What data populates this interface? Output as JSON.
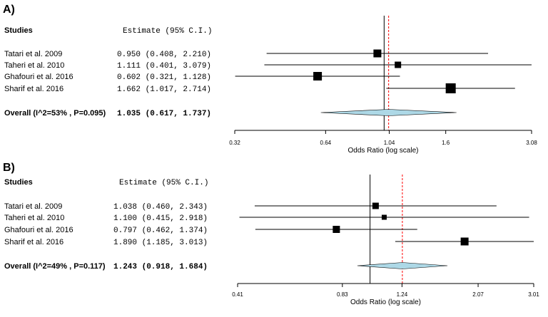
{
  "colors": {
    "square": "#000000",
    "diamond_fill": "#add8e6",
    "ref_line": "#000000",
    "pooled_line": "#ff0000",
    "ci_line": "#000000"
  },
  "chart_data": [
    {
      "type": "forest",
      "panel_label": "A)",
      "col_studies": "Studies",
      "col_estimate": "Estimate  (95% C.I.)",
      "xlabel": "Odds Ratio (log scale)",
      "xscale": "log",
      "xlim": [
        0.32,
        3.08
      ],
      "ticks": [
        "0.32",
        "0.64",
        "1.04",
        "1.6",
        "3.08"
      ],
      "reference_line": 1,
      "pooled_line": 1.035,
      "studies": [
        {
          "label": "Tatari et al. 2009",
          "estimate_text": "0.950 (0.408, 2.210)",
          "or": 0.95,
          "lower": 0.408,
          "upper": 2.21
        },
        {
          "label": "Taheri et al. 2010",
          "estimate_text": "1.111 (0.401, 3.079)",
          "or": 1.111,
          "lower": 0.401,
          "upper": 3.079
        },
        {
          "label": "Ghafouri et al. 2016",
          "estimate_text": "0.602 (0.321, 1.128)",
          "or": 0.602,
          "lower": 0.321,
          "upper": 1.128
        },
        {
          "label": "Sharif et al. 2016",
          "estimate_text": "1.662 (1.017, 2.714)",
          "or": 1.662,
          "lower": 1.017,
          "upper": 2.714
        }
      ],
      "overall": {
        "label": "Overall (I^2=53% , P=0.095)",
        "estimate_text": "1.035  (0.617, 1.737)",
        "or": 1.035,
        "lower": 0.617,
        "upper": 1.737
      }
    },
    {
      "type": "forest",
      "panel_label": "B)",
      "col_studies": "Studies",
      "col_estimate": "Estimate  (95% C.I.)",
      "xlabel": "Odds Ratio (log scale)",
      "xscale": "log",
      "xlim": [
        0.41,
        3.01
      ],
      "ticks": [
        "0.41",
        "0.83",
        "1.24",
        "2.07",
        "3.01"
      ],
      "reference_line": 1,
      "pooled_line": 1.243,
      "studies": [
        {
          "label": "Tatari et al. 2009",
          "estimate_text": "1.038 (0.460, 2.343)",
          "or": 1.038,
          "lower": 0.46,
          "upper": 2.343
        },
        {
          "label": "Taheri et al. 2010",
          "estimate_text": "1.100 (0.415, 2.918)",
          "or": 1.1,
          "lower": 0.415,
          "upper": 2.918
        },
        {
          "label": "Ghafouri et al. 2016",
          "estimate_text": "0.797 (0.462, 1.374)",
          "or": 0.797,
          "lower": 0.462,
          "upper": 1.374
        },
        {
          "label": "Sharif et al. 2016",
          "estimate_text": "1.890 (1.185, 3.013)",
          "or": 1.89,
          "lower": 1.185,
          "upper": 3.013
        }
      ],
      "overall": {
        "label": "Overall (I^2=49% , P=0.117)",
        "estimate_text": "1.243  (0.918, 1.684)",
        "or": 1.243,
        "lower": 0.918,
        "upper": 1.684
      }
    }
  ]
}
